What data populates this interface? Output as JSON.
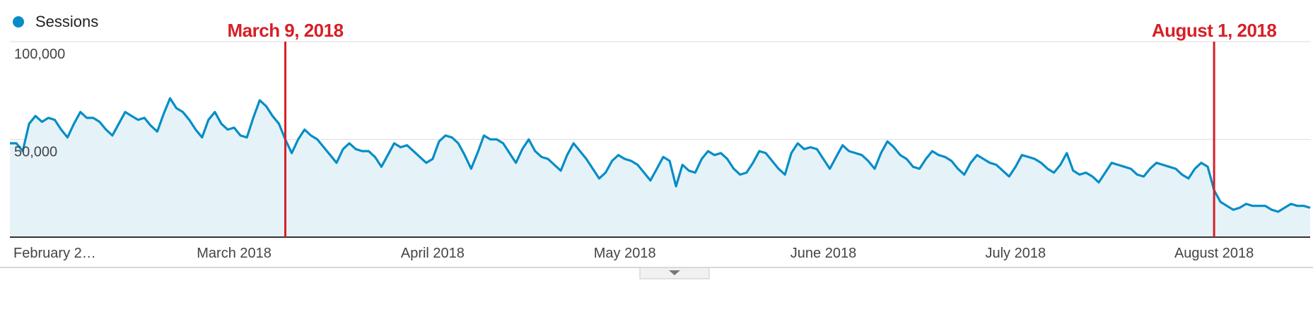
{
  "chart_data": {
    "type": "line",
    "series": [
      {
        "name": "Sessions",
        "color": "#058dc7",
        "fill_color": "#e5f3f9",
        "values": [
          48000,
          48000,
          44000,
          58000,
          62000,
          59000,
          61000,
          60000,
          55000,
          51000,
          58000,
          64000,
          61000,
          61000,
          59000,
          55000,
          52000,
          58000,
          64000,
          62000,
          60000,
          61000,
          57000,
          54000,
          63000,
          71000,
          66000,
          64000,
          60000,
          55000,
          51000,
          60000,
          64000,
          58000,
          55000,
          56000,
          52000,
          51000,
          61000,
          70000,
          67000,
          62000,
          58000,
          50000,
          43000,
          50000,
          55000,
          52000,
          50000,
          46000,
          42000,
          38000,
          45000,
          48000,
          45000,
          44000,
          44000,
          41000,
          36000,
          42000,
          48000,
          46000,
          47000,
          44000,
          41000,
          38000,
          40000,
          49000,
          52000,
          51000,
          48000,
          42000,
          35000,
          43000,
          52000,
          50000,
          50000,
          48000,
          43000,
          38000,
          45000,
          50000,
          44000,
          41000,
          40000,
          37000,
          34000,
          42000,
          48000,
          44000,
          40000,
          35000,
          30000,
          33000,
          39000,
          42000,
          40000,
          39000,
          37000,
          33000,
          29000,
          35000,
          41000,
          39000,
          26000,
          37000,
          34000,
          33000,
          40000,
          44000,
          42000,
          43000,
          40000,
          35000,
          32000,
          33000,
          38000,
          44000,
          43000,
          39000,
          35000,
          32000,
          43000,
          48000,
          45000,
          46000,
          45000,
          40000,
          35000,
          41000,
          47000,
          44000,
          43000,
          42000,
          39000,
          35000,
          43000,
          49000,
          46000,
          42000,
          40000,
          36000,
          35000,
          40000,
          44000,
          42000,
          41000,
          39000,
          35000,
          32000,
          38000,
          42000,
          40000,
          38000,
          37000,
          34000,
          31000,
          36000,
          42000,
          41000,
          40000,
          38000,
          35000,
          33000,
          37000,
          43000,
          34000,
          32000,
          33000,
          31000,
          28000,
          33000,
          38000,
          37000,
          36000,
          35000,
          32000,
          31000,
          35000,
          38000,
          37000,
          36000,
          35000,
          32000,
          30000,
          35000,
          38000,
          36000,
          24000,
          18000,
          16000,
          14000,
          15000,
          17000,
          16000,
          16000,
          16000,
          14000,
          13000,
          15000,
          17000,
          16000,
          16000,
          15000
        ]
      }
    ],
    "categories": [
      null,
      null,
      null,
      null,
      null,
      null,
      null,
      "February 2…",
      null,
      null,
      null,
      null,
      null,
      null,
      null,
      null,
      null,
      null,
      null,
      null,
      null,
      null,
      null,
      null,
      null,
      null,
      null,
      null,
      null,
      null,
      null,
      null,
      null,
      null,
      null,
      "March 2018",
      null,
      null,
      null,
      null,
      null,
      null,
      null,
      null,
      null,
      null,
      null,
      null,
      null,
      null,
      null,
      null,
      null,
      null,
      null,
      null,
      null,
      null,
      null,
      null,
      null,
      null,
      null,
      null,
      null,
      null,
      "April 2018",
      null,
      null,
      null,
      null,
      null,
      null,
      null,
      null,
      null,
      null,
      null,
      null,
      null,
      null,
      null,
      null,
      null,
      null,
      null,
      null,
      null,
      null,
      null,
      null,
      null,
      null,
      null,
      null,
      null,
      "May 2018",
      null,
      null,
      null,
      null,
      null,
      null,
      null,
      null,
      null,
      null,
      null,
      null,
      null,
      null,
      null,
      null,
      null,
      null,
      null,
      null,
      null,
      null,
      null,
      null,
      null,
      null,
      null,
      null,
      null,
      null,
      "June 2018",
      null,
      null,
      null,
      null,
      null,
      null,
      null,
      null,
      null,
      null,
      null,
      null,
      null,
      null,
      null,
      null,
      null,
      null,
      null,
      null,
      null,
      null,
      null,
      null,
      null,
      null,
      null,
      null,
      null,
      "July 2018",
      null,
      null,
      null,
      null,
      null,
      null,
      null,
      null,
      null,
      null,
      null,
      null,
      null,
      null,
      null,
      null,
      null,
      null,
      null,
      null,
      null,
      null,
      null,
      null,
      null,
      null,
      null,
      null,
      null,
      null,
      "August 2018",
      null,
      null,
      null,
      null,
      null,
      null,
      null,
      null,
      null,
      null,
      null,
      null,
      null,
      null,
      null
    ],
    "ylim": [
      0,
      100000
    ],
    "yticks": [
      {
        "value": 50000,
        "label": "50,000"
      },
      {
        "value": 100000,
        "label": "100,000"
      }
    ],
    "grid": true,
    "legend": "top-left",
    "annotations": [
      {
        "text": "March 9, 2018",
        "index": 43,
        "color": "#d71f27"
      },
      {
        "text": "August 1, 2018",
        "index": 188,
        "color": "#d71f27"
      }
    ]
  }
}
